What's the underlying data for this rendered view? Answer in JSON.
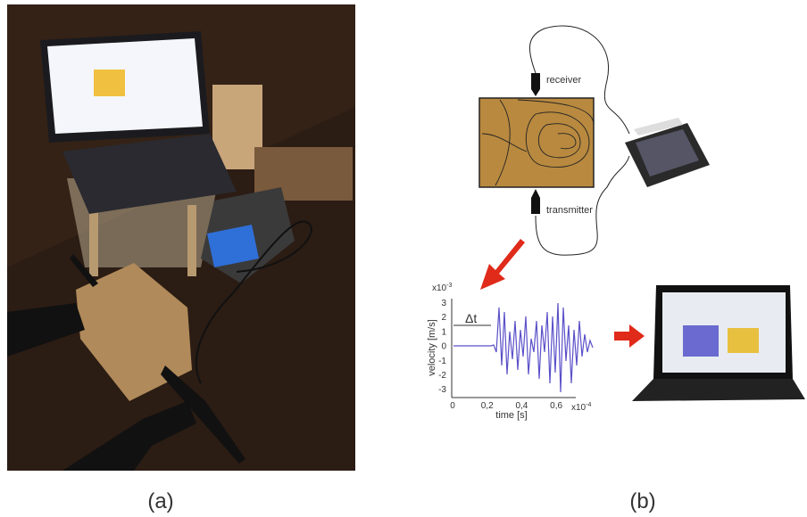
{
  "panel_a": {
    "label": "(a)"
  },
  "panel_b": {
    "label": "(b)",
    "sensors": {
      "receiver": "receiver",
      "transmitter": "transmitter"
    },
    "waveform": {
      "y_label": "velocity [m/s]",
      "x_label": "time [s]",
      "y_multiplier": {
        "base": "x10",
        "exponent": "-3"
      },
      "x_multiplier": {
        "base": "x10",
        "exponent": "-4"
      },
      "delta_t": "Δt",
      "y_tick_labels": [
        "3",
        "2",
        "1",
        "0",
        "-1",
        "-2",
        "-3"
      ],
      "x_tick_labels": [
        "0",
        "0,2",
        "0,4",
        "0,6"
      ]
    }
  }
}
